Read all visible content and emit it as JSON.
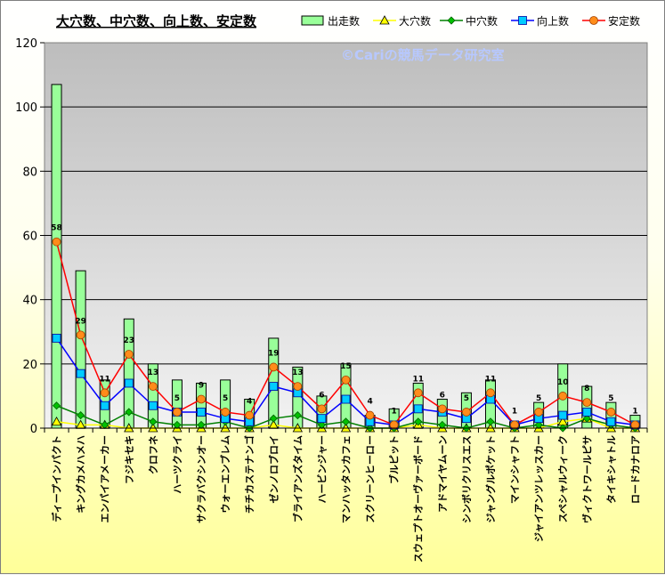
{
  "chart_data": {
    "type": "bar",
    "title": "大穴数、中穴数、向上数、安定数",
    "watermark": "©Cariの競馬データ研究室",
    "ylim": [
      0,
      120
    ],
    "yticks": [
      0,
      20,
      40,
      60,
      80,
      100,
      120
    ],
    "legend_position": "top-right",
    "grid": true,
    "categories": [
      "ディープインパクト",
      "キングカメハメハ",
      "エンパイアメーカー",
      "フジキセキ",
      "クロフネ",
      "ハーツクライ",
      "サクラバクシンオー",
      "ウォーエンブレム",
      "チチカステナンゴ",
      "ゼンノロブロイ",
      "ブライアンズタイム",
      "ハービンジャー",
      "マンハッタンカフェ",
      "スクリーンヒーロー",
      "ブルピット",
      "スウェプトオーヴァーボード",
      "アドマイヤムーン",
      "シンボリクリスエス",
      "ジャングルポケット",
      "マインシャフト",
      "ジャイアンツレッスカー",
      "スペシャルウィーク",
      "ヴィクトワールピサ",
      "タイキシャトル",
      "ロードカナロア"
    ],
    "series": [
      {
        "name": "出走数",
        "type": "bar",
        "color": "#99ff99",
        "values": [
          107,
          49,
          15,
          34,
          20,
          15,
          14,
          15,
          9,
          28,
          19,
          10,
          20,
          4,
          6,
          14,
          9,
          11,
          15,
          2,
          8,
          20,
          13,
          8,
          4
        ]
      },
      {
        "name": "大穴数",
        "type": "line",
        "color": "#ffff00",
        "values": [
          2,
          1,
          1,
          0,
          0,
          0,
          0,
          0,
          0,
          1,
          0,
          0,
          0,
          0,
          0,
          1,
          0,
          0,
          0,
          0,
          0,
          2,
          3,
          0,
          0
        ]
      },
      {
        "name": "中穴数",
        "type": "line",
        "color": "#008000",
        "values": [
          7,
          4,
          1,
          5,
          2,
          1,
          1,
          2,
          0,
          3,
          4,
          1,
          2,
          0,
          0,
          2,
          1,
          0,
          2,
          0,
          1,
          0,
          3,
          1,
          0
        ]
      },
      {
        "name": "向上数",
        "type": "line",
        "color": "#0000ff",
        "values": [
          28,
          17,
          7,
          14,
          7,
          5,
          5,
          3,
          2,
          13,
          11,
          3,
          9,
          2,
          1,
          6,
          5,
          3,
          9,
          1,
          3,
          4,
          5,
          2,
          1
        ]
      },
      {
        "name": "安定数",
        "type": "line",
        "color": "#ff0000",
        "values": [
          58,
          29,
          11,
          23,
          13,
          5,
          9,
          5,
          4,
          19,
          13,
          6,
          15,
          4,
          1,
          11,
          6,
          5,
          11,
          1,
          5,
          10,
          8,
          5,
          1
        ]
      }
    ],
    "data_labels": [
      "58",
      "29",
      "11",
      "23",
      "13",
      "5",
      "9",
      "5",
      "4",
      "19",
      "13",
      "6",
      "15",
      "4",
      "1",
      "11",
      "6",
      "5",
      "11",
      "1",
      "5",
      "10",
      "8",
      "5",
      "1"
    ]
  }
}
